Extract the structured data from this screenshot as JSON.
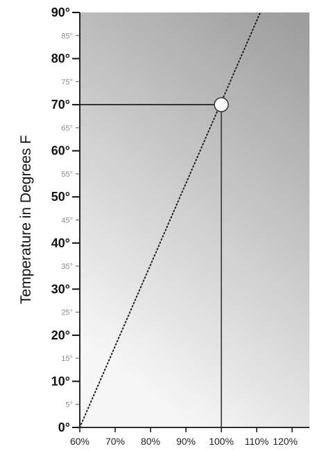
{
  "chart_data": {
    "type": "line",
    "title": "",
    "ylabel": "Temperature in Degrees F",
    "xlabel": "",
    "x_ticks": [
      "60%",
      "70%",
      "80%",
      "90%",
      "100%",
      "110%",
      "120%"
    ],
    "y_ticks_major": [
      "0°",
      "10°",
      "20°",
      "30°",
      "40°",
      "50°",
      "60°",
      "70°",
      "80°",
      "90°"
    ],
    "y_ticks_minor": [
      "5°",
      "15°",
      "25°",
      "35°",
      "45°",
      "55°",
      "65°",
      "75°",
      "85°"
    ],
    "xlim": [
      60,
      120
    ],
    "ylim": [
      0,
      90
    ],
    "series": [
      {
        "style": "dotted",
        "x": [
          60,
          111
        ],
        "y": [
          0,
          90
        ]
      }
    ],
    "highlight": {
      "x": 100,
      "y": 70
    },
    "background_gradient": [
      "#f7f7f7",
      "#9e9e9e"
    ],
    "grid": false
  }
}
